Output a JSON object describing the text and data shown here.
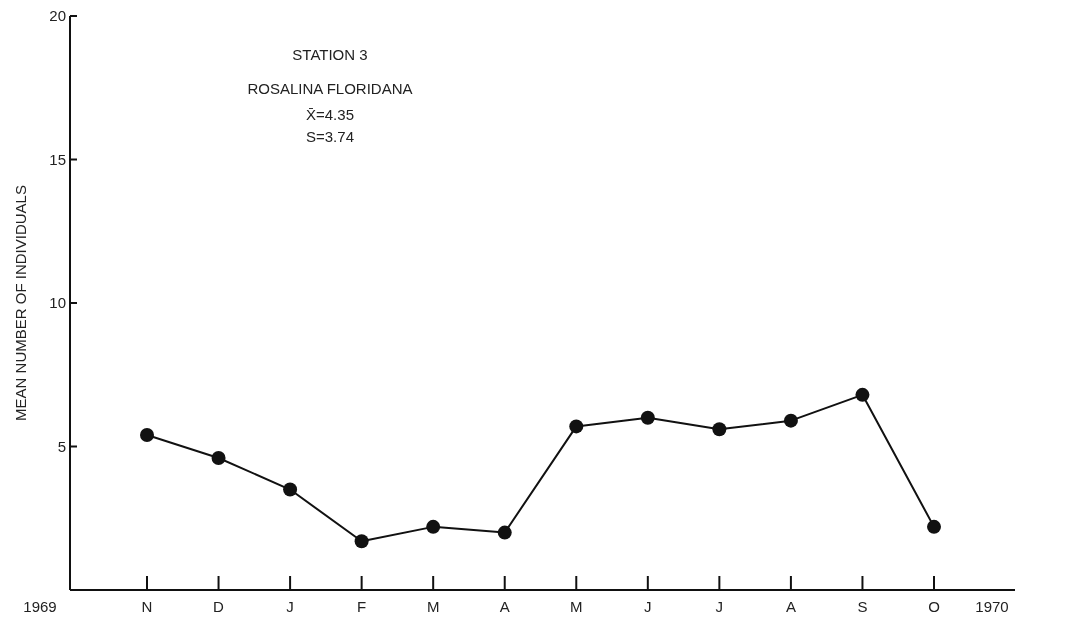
{
  "chart_data": {
    "type": "line",
    "title": "STATION 3",
    "subtitle": "ROSALINA FLORIDANA",
    "ylabel": "MEAN NUMBER OF INDIVIDUALS",
    "annotations": [
      "X̄=4.35",
      "S=3.74",
      "1969",
      "1970"
    ],
    "categories": [
      "N",
      "D",
      "J",
      "F",
      "M",
      "A",
      "M",
      "J",
      "J",
      "A",
      "S",
      "O"
    ],
    "series": [
      {
        "color": "#111111",
        "values": [
          5.4,
          4.6,
          3.5,
          1.7,
          2.2,
          2.0,
          5.7,
          6.0,
          5.6,
          5.9,
          6.8,
          2.2
        ]
      }
    ],
    "ylim": [
      0,
      20
    ],
    "yticks": [
      5,
      10,
      15,
      20
    ],
    "marker": "circle",
    "line_style": "solid"
  }
}
